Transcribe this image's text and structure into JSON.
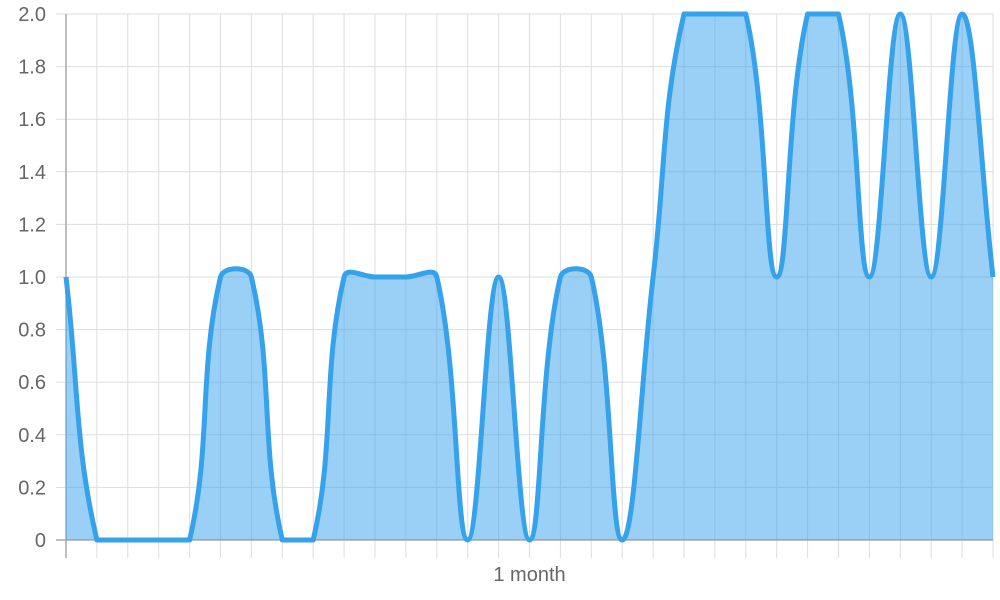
{
  "chart_data": {
    "type": "area",
    "x_tick_labels": [
      {
        "index": 15,
        "label": "1 month"
      }
    ],
    "y_ticks": [
      "0",
      "0.2",
      "0.4",
      "0.6",
      "0.8",
      "1.0",
      "1.2",
      "1.4",
      "1.6",
      "1.8",
      "2.0"
    ],
    "ylim": [
      0,
      2
    ],
    "grid": true,
    "smoothed": true,
    "values": [
      1,
      0,
      0,
      0,
      0,
      1,
      1,
      0,
      0,
      1,
      1,
      1,
      1,
      0,
      1,
      0,
      1,
      1,
      0,
      1,
      2,
      2,
      2,
      1,
      2,
      2,
      1,
      2,
      1,
      2,
      1
    ],
    "line_color": "#36a2eb",
    "fill_color": "rgba(54,162,235,0.5)",
    "grid_color": "#dddddd"
  }
}
